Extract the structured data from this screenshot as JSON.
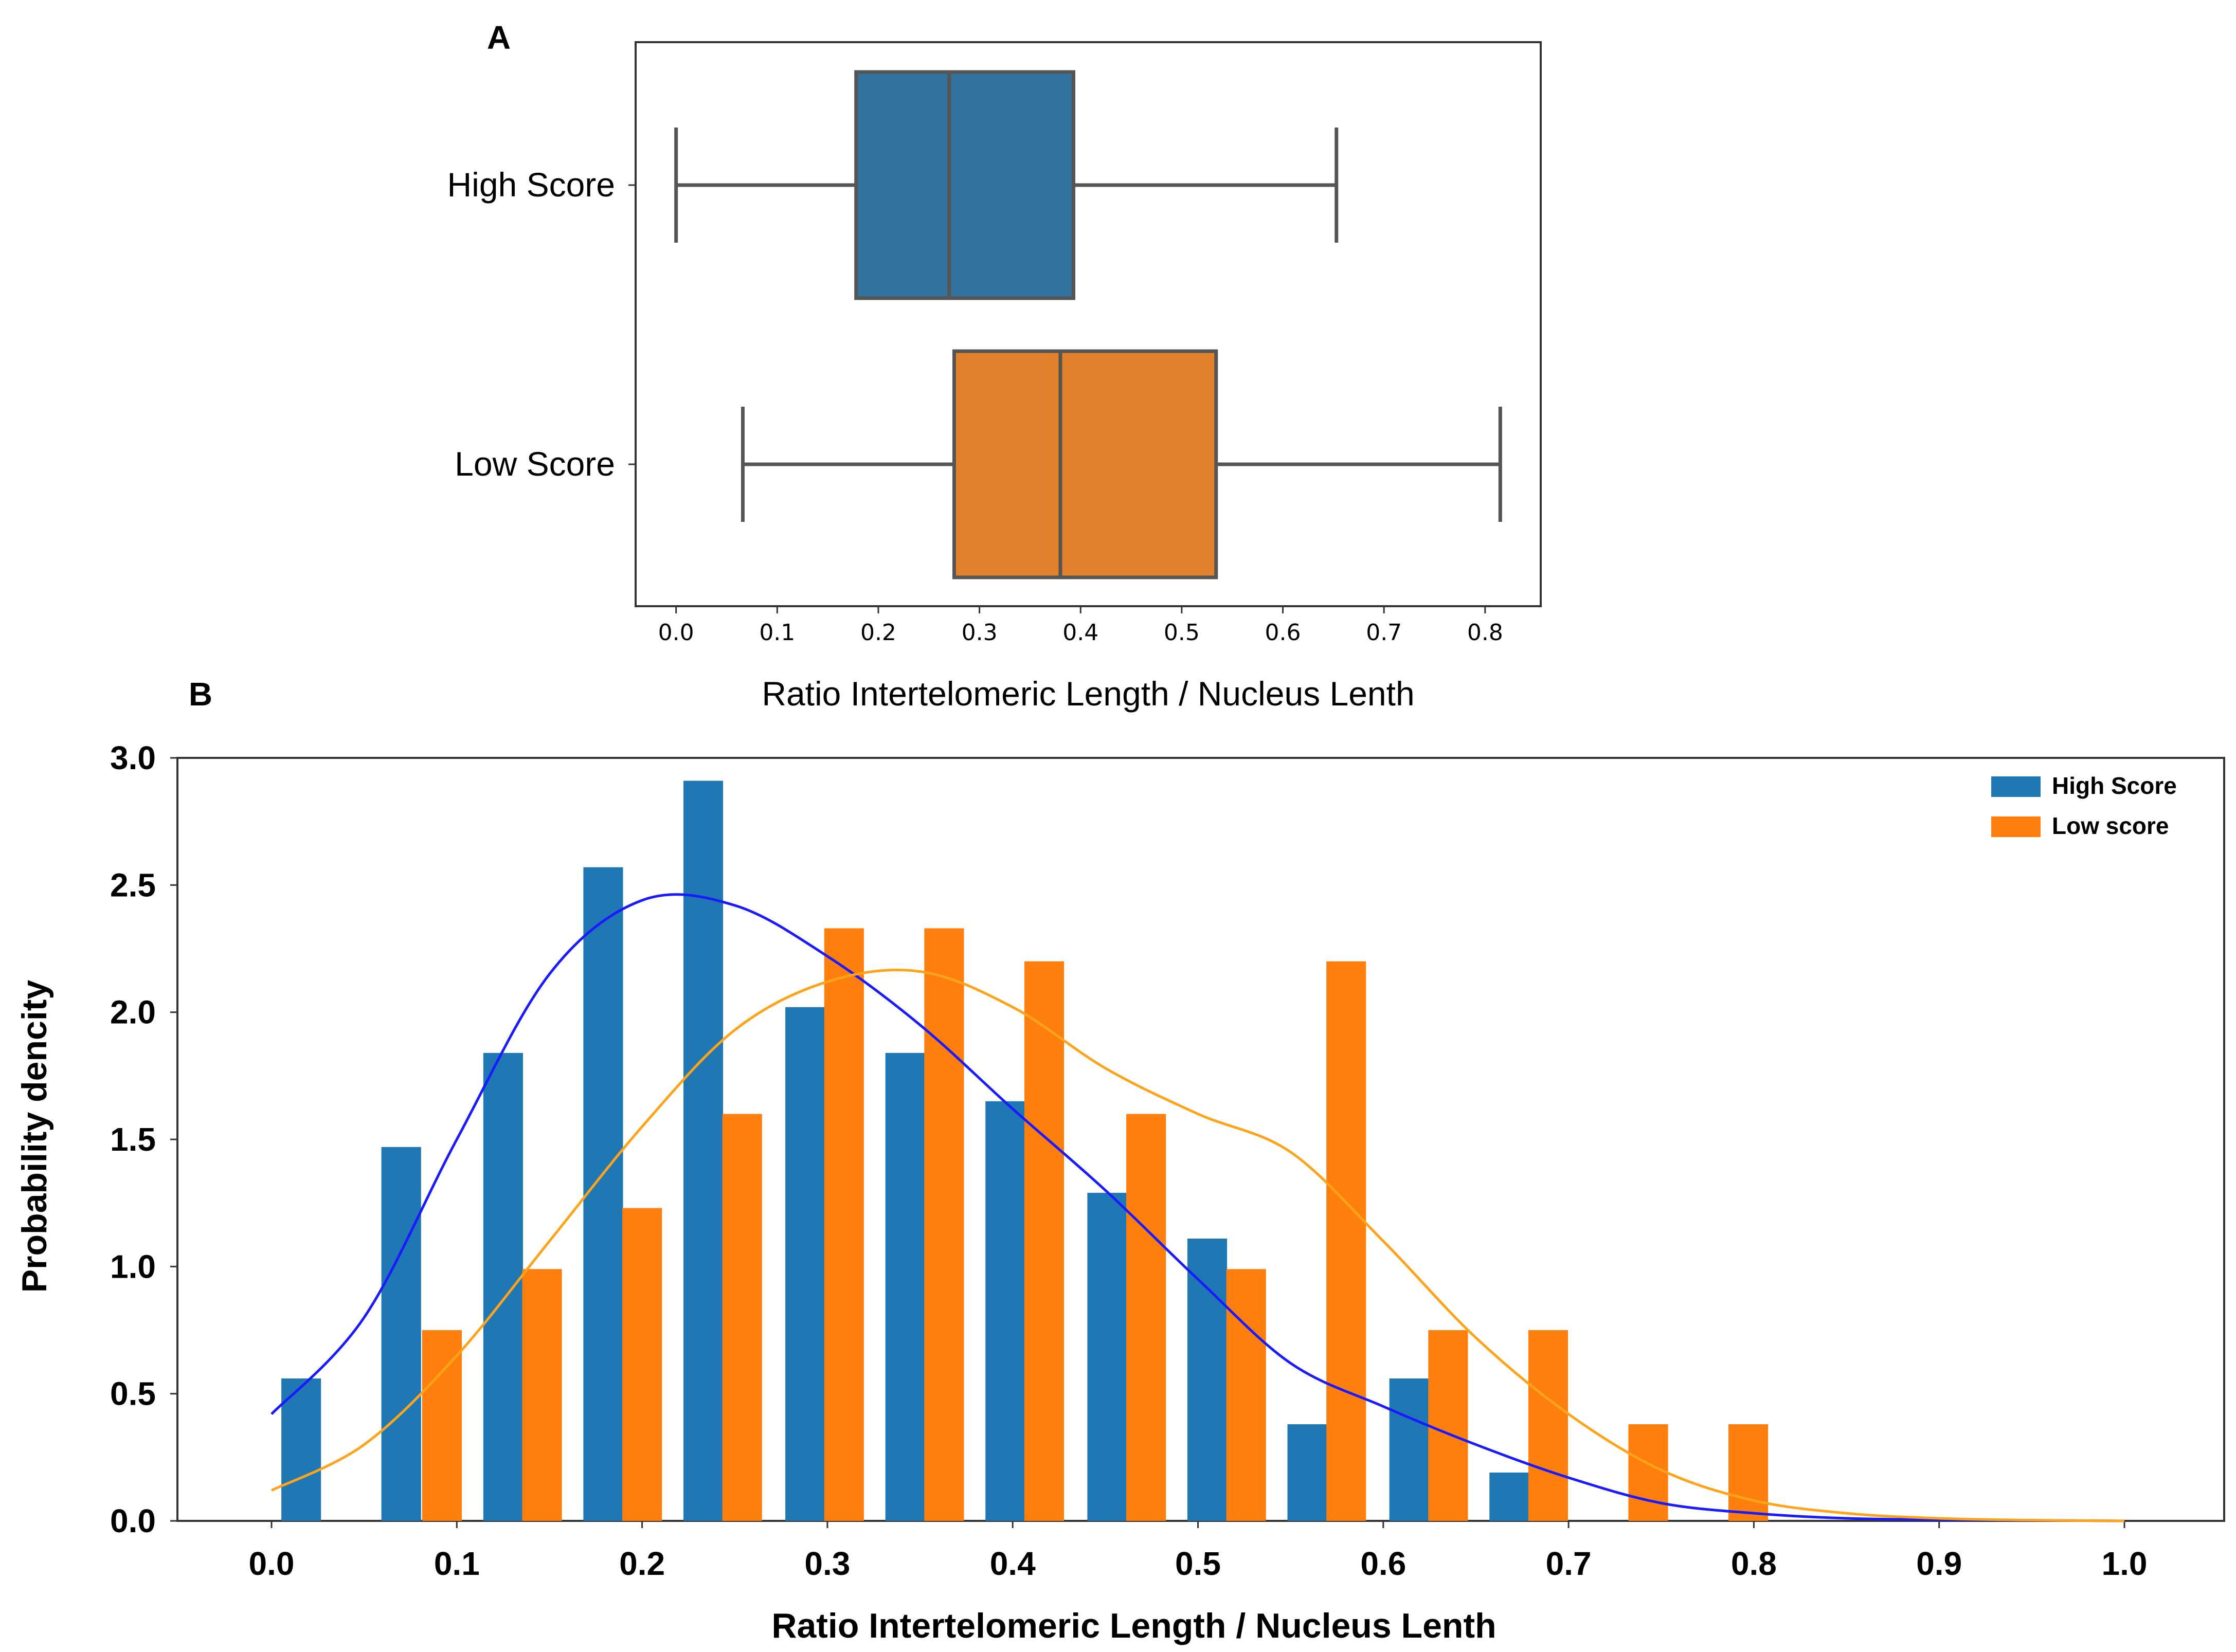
{
  "figure": {
    "title": ""
  },
  "chart_data": [
    {
      "panel": "A",
      "type": "box",
      "orientation": "horizontal",
      "title": "A",
      "xlabel": "Ratio Intertelomeric Length / Nucleus Lenth",
      "ylabel": "",
      "xlim": [
        -0.04,
        0.855
      ],
      "xticks": [
        "0.0",
        "0.1",
        "0.2",
        "0.3",
        "0.4",
        "0.5",
        "0.6",
        "0.7",
        "0.8"
      ],
      "series": [
        {
          "name": "High Score",
          "color": "#33729e",
          "min": 0.0,
          "q1": 0.178,
          "median": 0.27,
          "q3": 0.393,
          "max": 0.653
        },
        {
          "name": "Low Score",
          "color": "#e1812c",
          "min": 0.066,
          "q1": 0.275,
          "median": 0.38,
          "q3": 0.534,
          "max": 0.815
        }
      ]
    },
    {
      "panel": "B",
      "type": "bar",
      "title": "B",
      "xlabel": "Ratio Intertelomeric Length / Nucleus Lenth",
      "ylabel": "Probability dencity",
      "xlim": [
        -0.05,
        1.05
      ],
      "ylim": [
        0,
        3.0
      ],
      "xticks": [
        "0.0",
        "0.1",
        "0.2",
        "0.3",
        "0.4",
        "0.5",
        "0.6",
        "0.7",
        "0.8",
        "0.9",
        "1.0"
      ],
      "yticks": [
        "0.0",
        "0.5",
        "1.0",
        "1.5",
        "2.0",
        "2.5",
        "3.0"
      ],
      "legend": {
        "position": "top-right"
      },
      "series": [
        {
          "name": "High Score",
          "color": "#1f77b4",
          "bin_centers": [
            0.016,
            0.07,
            0.125,
            0.179,
            0.233,
            0.288,
            0.342,
            0.396,
            0.451,
            0.505,
            0.559,
            0.614,
            0.668
          ],
          "values": [
            0.56,
            1.47,
            1.84,
            2.57,
            2.91,
            2.02,
            1.84,
            1.65,
            1.29,
            1.11,
            0.38,
            0.56,
            0.19
          ]
        },
        {
          "name": "Low score",
          "color": "#ff7f0e",
          "bin_centers": [
            0.092,
            0.146,
            0.2,
            0.254,
            0.309,
            0.363,
            0.417,
            0.472,
            0.526,
            0.58,
            0.635,
            0.689,
            0.743,
            0.797
          ],
          "values": [
            0.75,
            0.99,
            1.23,
            1.6,
            2.33,
            2.33,
            2.2,
            1.6,
            0.99,
            2.2,
            0.75,
            0.75,
            0.38,
            0.38
          ]
        }
      ],
      "kde": [
        {
          "name": "High Score KDE",
          "color": "#1a1aff",
          "x": [
            0.0,
            0.05,
            0.1,
            0.15,
            0.2,
            0.25,
            0.3,
            0.35,
            0.4,
            0.45,
            0.5,
            0.55,
            0.6,
            0.65,
            0.7,
            0.75,
            0.8,
            0.85,
            0.9,
            0.95,
            1.0
          ],
          "y": [
            0.42,
            0.8,
            1.5,
            2.15,
            2.44,
            2.42,
            2.22,
            1.95,
            1.62,
            1.3,
            0.95,
            0.62,
            0.45,
            0.3,
            0.17,
            0.07,
            0.03,
            0.01,
            0.005,
            0.002,
            0.0
          ]
        },
        {
          "name": "Low score KDE",
          "color": "#ffa31a",
          "x": [
            0.0,
            0.05,
            0.1,
            0.15,
            0.2,
            0.25,
            0.3,
            0.35,
            0.4,
            0.45,
            0.5,
            0.55,
            0.6,
            0.65,
            0.7,
            0.75,
            0.8,
            0.85,
            0.9,
            0.95,
            1.0
          ],
          "y": [
            0.12,
            0.3,
            0.65,
            1.1,
            1.55,
            1.93,
            2.12,
            2.16,
            2.02,
            1.78,
            1.6,
            1.45,
            1.1,
            0.72,
            0.42,
            0.2,
            0.08,
            0.03,
            0.01,
            0.003,
            0.0
          ]
        }
      ]
    }
  ]
}
